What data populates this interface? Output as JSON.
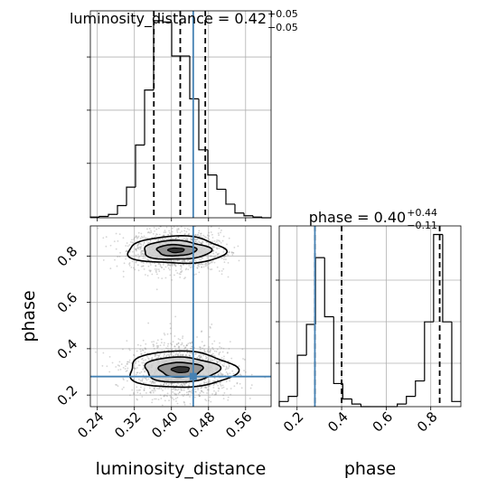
{
  "chart_data": {
    "type": "corner",
    "parameters": [
      "luminosity_distance",
      "phase"
    ],
    "truths": {
      "luminosity_distance": 0.447,
      "phase": 0.28
    },
    "titles": {
      "luminosity_distance": {
        "main": "luminosity_distance = 0.42",
        "plus": "+0.05",
        "minus": "−0.05"
      },
      "phase": {
        "main": "phase = 0.40",
        "plus": "+0.44",
        "minus": "−0.11"
      }
    },
    "xlabels": {
      "luminosity_distance": "luminosity_distance",
      "phase": "phase"
    },
    "ylabels": {
      "phase": "phase"
    },
    "luminosity_distance_hist": {
      "xlim": [
        0.225,
        0.615
      ],
      "bin_edges": [
        0.225,
        0.2445,
        0.264,
        0.2835,
        0.303,
        0.3225,
        0.342,
        0.3615,
        0.381,
        0.4005,
        0.42,
        0.4395,
        0.459,
        0.4785,
        0.498,
        0.5175,
        0.537,
        0.5565,
        0.576,
        0.5955,
        0.615
      ],
      "counts": [
        1,
        2,
        5,
        18,
        45,
        107,
        188,
        290,
        288,
        238,
        238,
        175,
        100,
        63,
        42,
        20,
        7,
        3,
        1,
        0
      ],
      "quantiles": [
        0.362,
        0.419,
        0.473
      ],
      "ticks": [
        0.24,
        0.32,
        0.4,
        0.48,
        0.56
      ],
      "tick_labels": [
        "0.24",
        "0.32",
        "0.40",
        "0.48",
        "0.56"
      ]
    },
    "phase_hist": {
      "xlim": [
        0.12,
        0.935
      ],
      "bin_edges": [
        0.12,
        0.16075,
        0.2015,
        0.24225,
        0.283,
        0.32375,
        0.3645,
        0.40525,
        0.446,
        0.48675,
        0.5275,
        0.56825,
        0.609,
        0.64975,
        0.6905,
        0.73125,
        0.772,
        0.81275,
        0.8535,
        0.89425,
        0.935
      ],
      "counts": [
        2,
        4,
        20,
        32,
        58,
        35,
        9,
        3,
        1,
        0,
        0,
        0,
        0,
        1,
        4,
        10,
        33,
        67,
        33,
        2
      ],
      "quantiles": [
        0.28,
        0.4,
        0.84
      ],
      "ticks": [
        0.2,
        0.4,
        0.6,
        0.8
      ],
      "tick_labels": [
        "0.2",
        "0.4",
        "0.6",
        "0.8"
      ]
    },
    "scatter_2d": {
      "xlim": [
        0.225,
        0.615
      ],
      "ylim": [
        0.15,
        0.93
      ],
      "yticks": [
        0.2,
        0.4,
        0.6,
        0.8
      ],
      "ytick_labels": [
        "0.2",
        "0.4",
        "0.6",
        "0.8"
      ],
      "modes": [
        {
          "center": [
            0.41,
            0.825
          ],
          "spread": [
            0.05,
            0.045
          ],
          "weight": 0.45
        },
        {
          "center": [
            0.42,
            0.31
          ],
          "spread": [
            0.055,
            0.06
          ],
          "weight": 0.55
        }
      ]
    },
    "grid": true,
    "colors": {
      "hist": "#000000",
      "truth": "#4682b4",
      "samples": "#888888",
      "contour_fill": "#000000"
    }
  }
}
